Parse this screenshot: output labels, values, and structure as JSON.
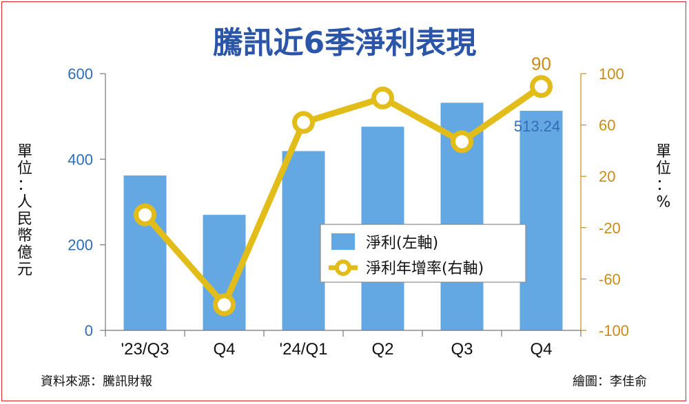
{
  "colors": {
    "bar": "#64a8e3",
    "line": "#e2bd1a",
    "left_axis": "#2f6db5",
    "right_axis": "#c98b16",
    "frame": "#e8202a",
    "title": "#2a55a8"
  },
  "chart_data": {
    "type": "bar",
    "title": "騰訊近6季淨利表現",
    "categories": [
      "'23/Q3",
      "Q4",
      "'24/Q1",
      "Q2",
      "Q3",
      "Q4"
    ],
    "series": [
      {
        "name": "淨利(左軸)",
        "type": "bar",
        "axis": "left",
        "values": [
          362,
          270,
          419,
          476,
          532,
          513.24
        ]
      },
      {
        "name": "淨利年增率(右軸)",
        "type": "line",
        "axis": "right",
        "values": [
          -10,
          -80,
          62,
          81,
          47,
          90
        ]
      }
    ],
    "left_axis": {
      "label": "單位：人民幣億元",
      "ylim": [
        0,
        600
      ],
      "ticks": [
        "0",
        "200",
        "400",
        "600"
      ]
    },
    "right_axis": {
      "label": "單位：%",
      "ylim": [
        -100,
        100
      ],
      "ticks": [
        "-100",
        "-60",
        "-20",
        "20",
        "60",
        "100"
      ]
    },
    "data_labels": {
      "last_bar": "513.24",
      "last_point": "90"
    },
    "legend": {
      "placement": "center-right"
    },
    "grid": false
  },
  "footer": {
    "source": "資料來源：騰訊財報",
    "credit": "繪圖：李佳俞"
  }
}
